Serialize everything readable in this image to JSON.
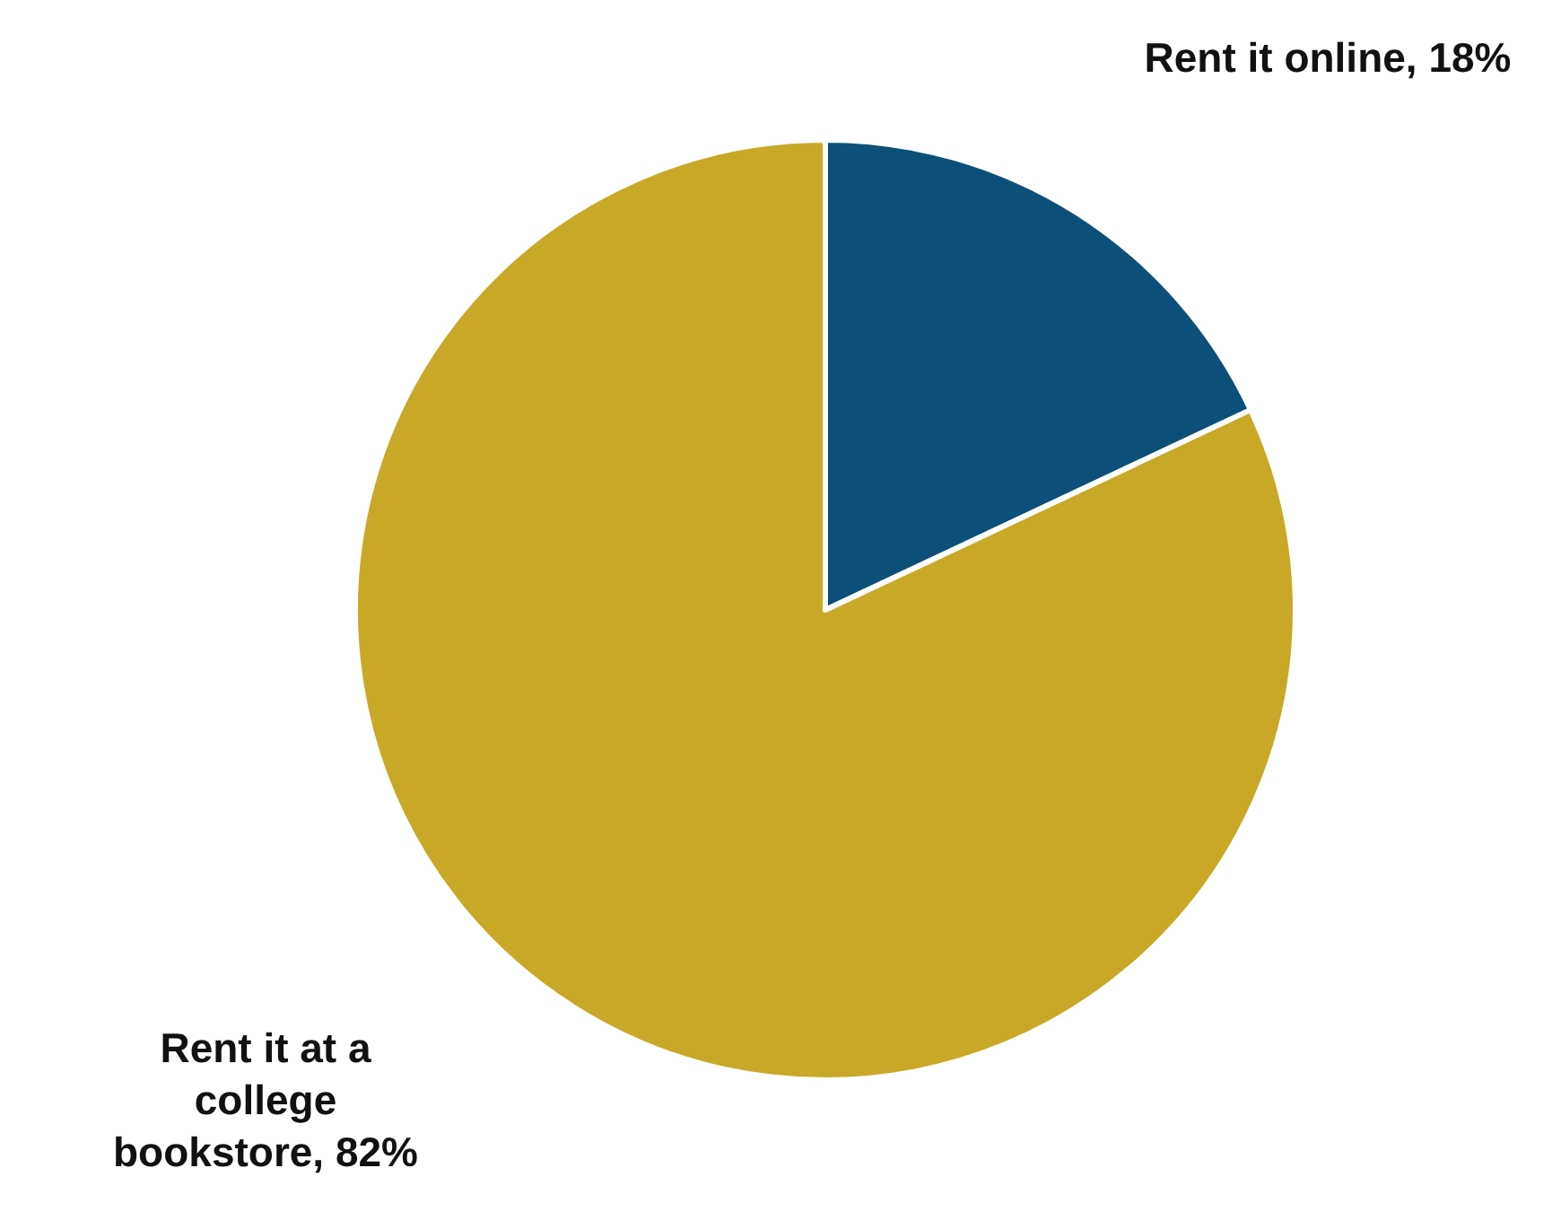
{
  "chart_data": {
    "type": "pie",
    "categories": [
      "Rent it online",
      "Rent it at a college bookstore"
    ],
    "values": [
      18,
      82
    ],
    "colors": [
      "#0c5079",
      "#c9a827"
    ],
    "value_labels": [
      "18%",
      "82%"
    ]
  }
}
